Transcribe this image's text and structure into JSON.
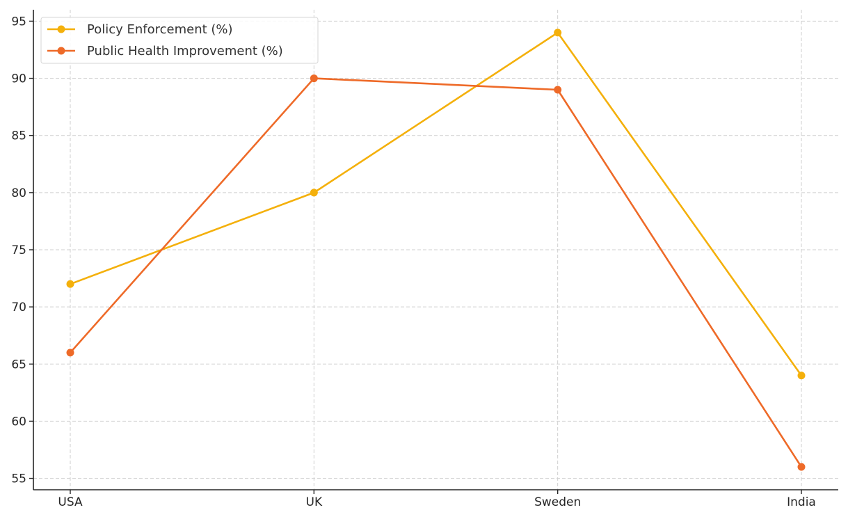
{
  "chart_data": {
    "type": "line",
    "title": "",
    "xlabel": "",
    "ylabel": "",
    "categories": [
      "USA",
      "UK",
      "Sweden",
      "India"
    ],
    "ylim": [
      54,
      96
    ],
    "yticks": [
      55,
      60,
      65,
      70,
      75,
      80,
      85,
      90,
      95
    ],
    "grid": true,
    "legend_position": "top-left",
    "series": [
      {
        "name": "Policy Enforcement (%)",
        "color": "#F4B00B",
        "values": [
          72,
          80,
          94,
          64
        ]
      },
      {
        "name": "Public Health Improvement (%)",
        "color": "#EE6A28",
        "values": [
          66,
          90,
          89,
          56
        ]
      }
    ]
  }
}
